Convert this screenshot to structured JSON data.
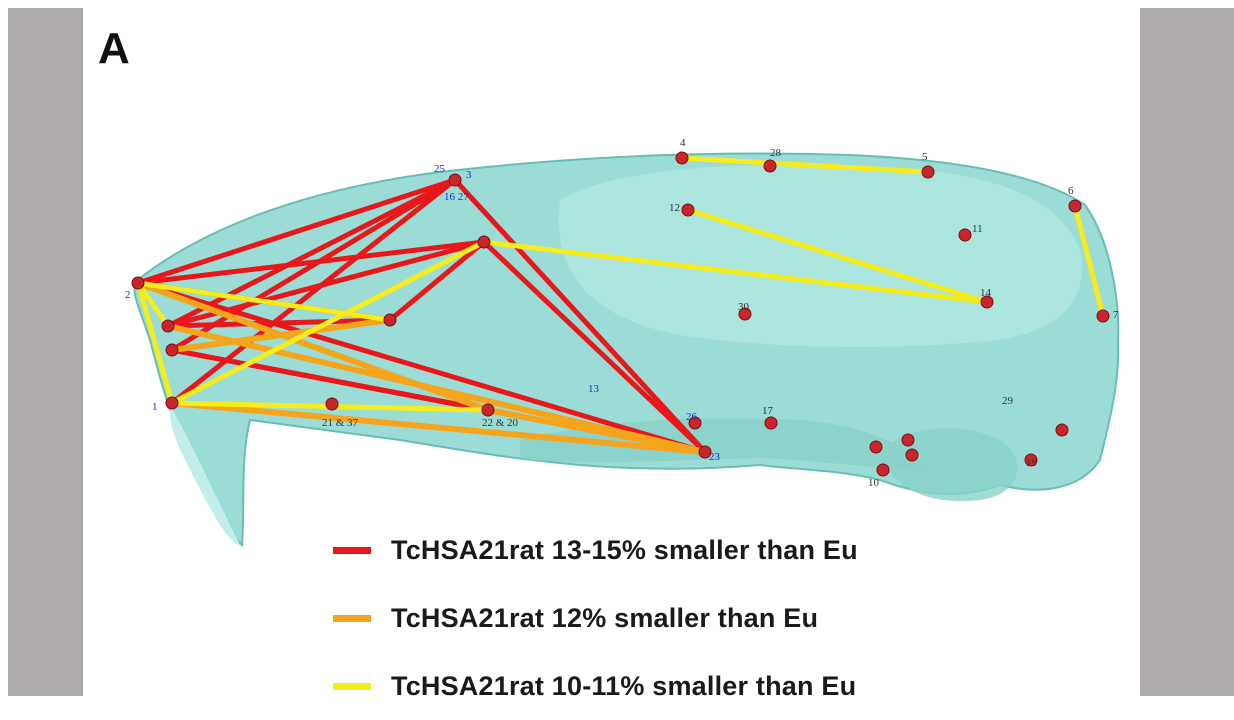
{
  "panel_label": "A",
  "colors": {
    "red": "#e8171a",
    "orange": "#f5a51c",
    "yellow": "#f4ec1c",
    "skull": "#7fd2c9",
    "landmark": "#c8262b",
    "label_blue": "#1a2cd6",
    "label_dark": "#333333"
  },
  "legend": [
    {
      "color": "#e8171a",
      "label": "TcHSA21rat 13-15% smaller than Eu"
    },
    {
      "color": "#f5a51c",
      "label": "TcHSA21rat 12% smaller than Eu"
    },
    {
      "color": "#f4ec1c",
      "label": "TcHSA21rat 10-11% smaller than Eu"
    }
  ],
  "landmark_labels": [
    {
      "text": "4",
      "color": "dark"
    },
    {
      "text": "28",
      "color": "dark"
    },
    {
      "text": "5",
      "color": "dark"
    },
    {
      "text": "6",
      "color": "dark"
    },
    {
      "text": "7",
      "color": "dark"
    },
    {
      "text": "12",
      "color": "dark"
    },
    {
      "text": "11",
      "color": "dark"
    },
    {
      "text": "14",
      "color": "dark"
    },
    {
      "text": "30",
      "color": "dark"
    },
    {
      "text": "25",
      "color": "blue"
    },
    {
      "text": "3",
      "color": "blue"
    },
    {
      "text": "16 27",
      "color": "blue"
    },
    {
      "text": "2",
      "color": "blue"
    },
    {
      "text": "1",
      "color": "blue"
    },
    {
      "text": "13",
      "color": "blue"
    },
    {
      "text": "26",
      "color": "blue"
    },
    {
      "text": "23",
      "color": "blue"
    },
    {
      "text": "21 & 37",
      "color": "dark"
    },
    {
      "text": "22 & 20",
      "color": "dark"
    },
    {
      "text": "17",
      "color": "dark"
    },
    {
      "text": "10",
      "color": "dark"
    },
    {
      "text": "19",
      "color": "dark"
    },
    {
      "text": "29",
      "color": "dark"
    }
  ]
}
